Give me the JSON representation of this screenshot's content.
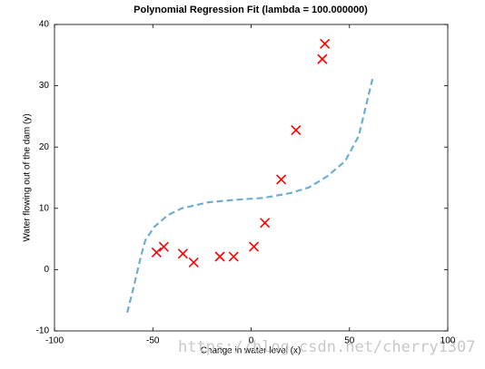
{
  "chart_data": {
    "type": "scatter",
    "title": "Polynomial Regression Fit (lambda = 100.000000)",
    "x_label": "Change in water level (x)",
    "y_label": "Water flowing out of the dam (y)",
    "watermark": "https://blog.csdn.net/cherry1307",
    "xlim": [
      -100,
      100
    ],
    "xticks": [
      -100,
      -50,
      0,
      50,
      100
    ],
    "ylim": [
      -10,
      40
    ],
    "yticks": [
      -10,
      0,
      10,
      20,
      30,
      40
    ],
    "series": [
      {
        "type": "scatter",
        "color": "#ff0000",
        "x": [
          -15.9,
          -29.2,
          36.2,
          37.5,
          -48.1,
          -8.9,
          15.3,
          -34.7,
          1.4,
          -44.4,
          7.0,
          22.8
        ],
        "values": [
          2.13,
          1.17,
          34.36,
          36.84,
          2.81,
          2.12,
          14.71,
          2.61,
          3.74,
          3.73,
          7.63,
          22.75
        ]
      },
      {
        "type": "line",
        "color": "#6baed6",
        "x": [
          -63.0,
          -60.7,
          -56.1,
          -53.8,
          -49.2,
          -42.3,
          -35.3,
          -21.5,
          -7.6,
          6.2,
          20.1,
          29.3,
          38.6,
          47.8,
          54.7,
          61.7
        ],
        "values": [
          -7.0,
          -4.1,
          2.1,
          4.8,
          7.0,
          8.9,
          10.0,
          11.0,
          11.4,
          11.7,
          12.5,
          13.4,
          15.2,
          17.7,
          21.8,
          31.1
        ]
      }
    ]
  }
}
